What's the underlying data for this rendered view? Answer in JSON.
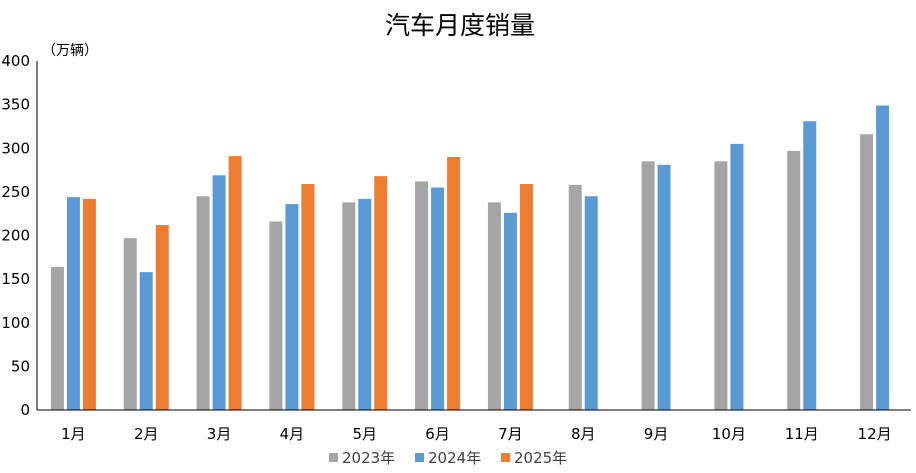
{
  "chart_data": {
    "type": "bar",
    "title": "汽车月度销量",
    "unit_label": "（万辆）",
    "categories": [
      "1月",
      "2月",
      "3月",
      "4月",
      "5月",
      "6月",
      "7月",
      "8月",
      "9月",
      "10月",
      "11月",
      "12月"
    ],
    "series": [
      {
        "name": "2023年",
        "color": "#a5a5a5",
        "values": [
          164,
          197,
          245,
          216,
          238,
          262,
          238,
          258,
          285,
          285,
          297,
          316
        ]
      },
      {
        "name": "2024年",
        "color": "#5b9bd5",
        "values": [
          244,
          158,
          269,
          236,
          242,
          255,
          226,
          245,
          281,
          305,
          331,
          349
        ]
      },
      {
        "name": "2025年",
        "color": "#ed7d31",
        "values": [
          242,
          212,
          291,
          259,
          268,
          290,
          259,
          null,
          null,
          null,
          null,
          null
        ]
      }
    ],
    "ylim": [
      0,
      400
    ],
    "yticks": [
      0,
      50,
      100,
      150,
      200,
      250,
      300,
      350,
      400
    ],
    "grid": false,
    "legend_position": "bottom"
  }
}
